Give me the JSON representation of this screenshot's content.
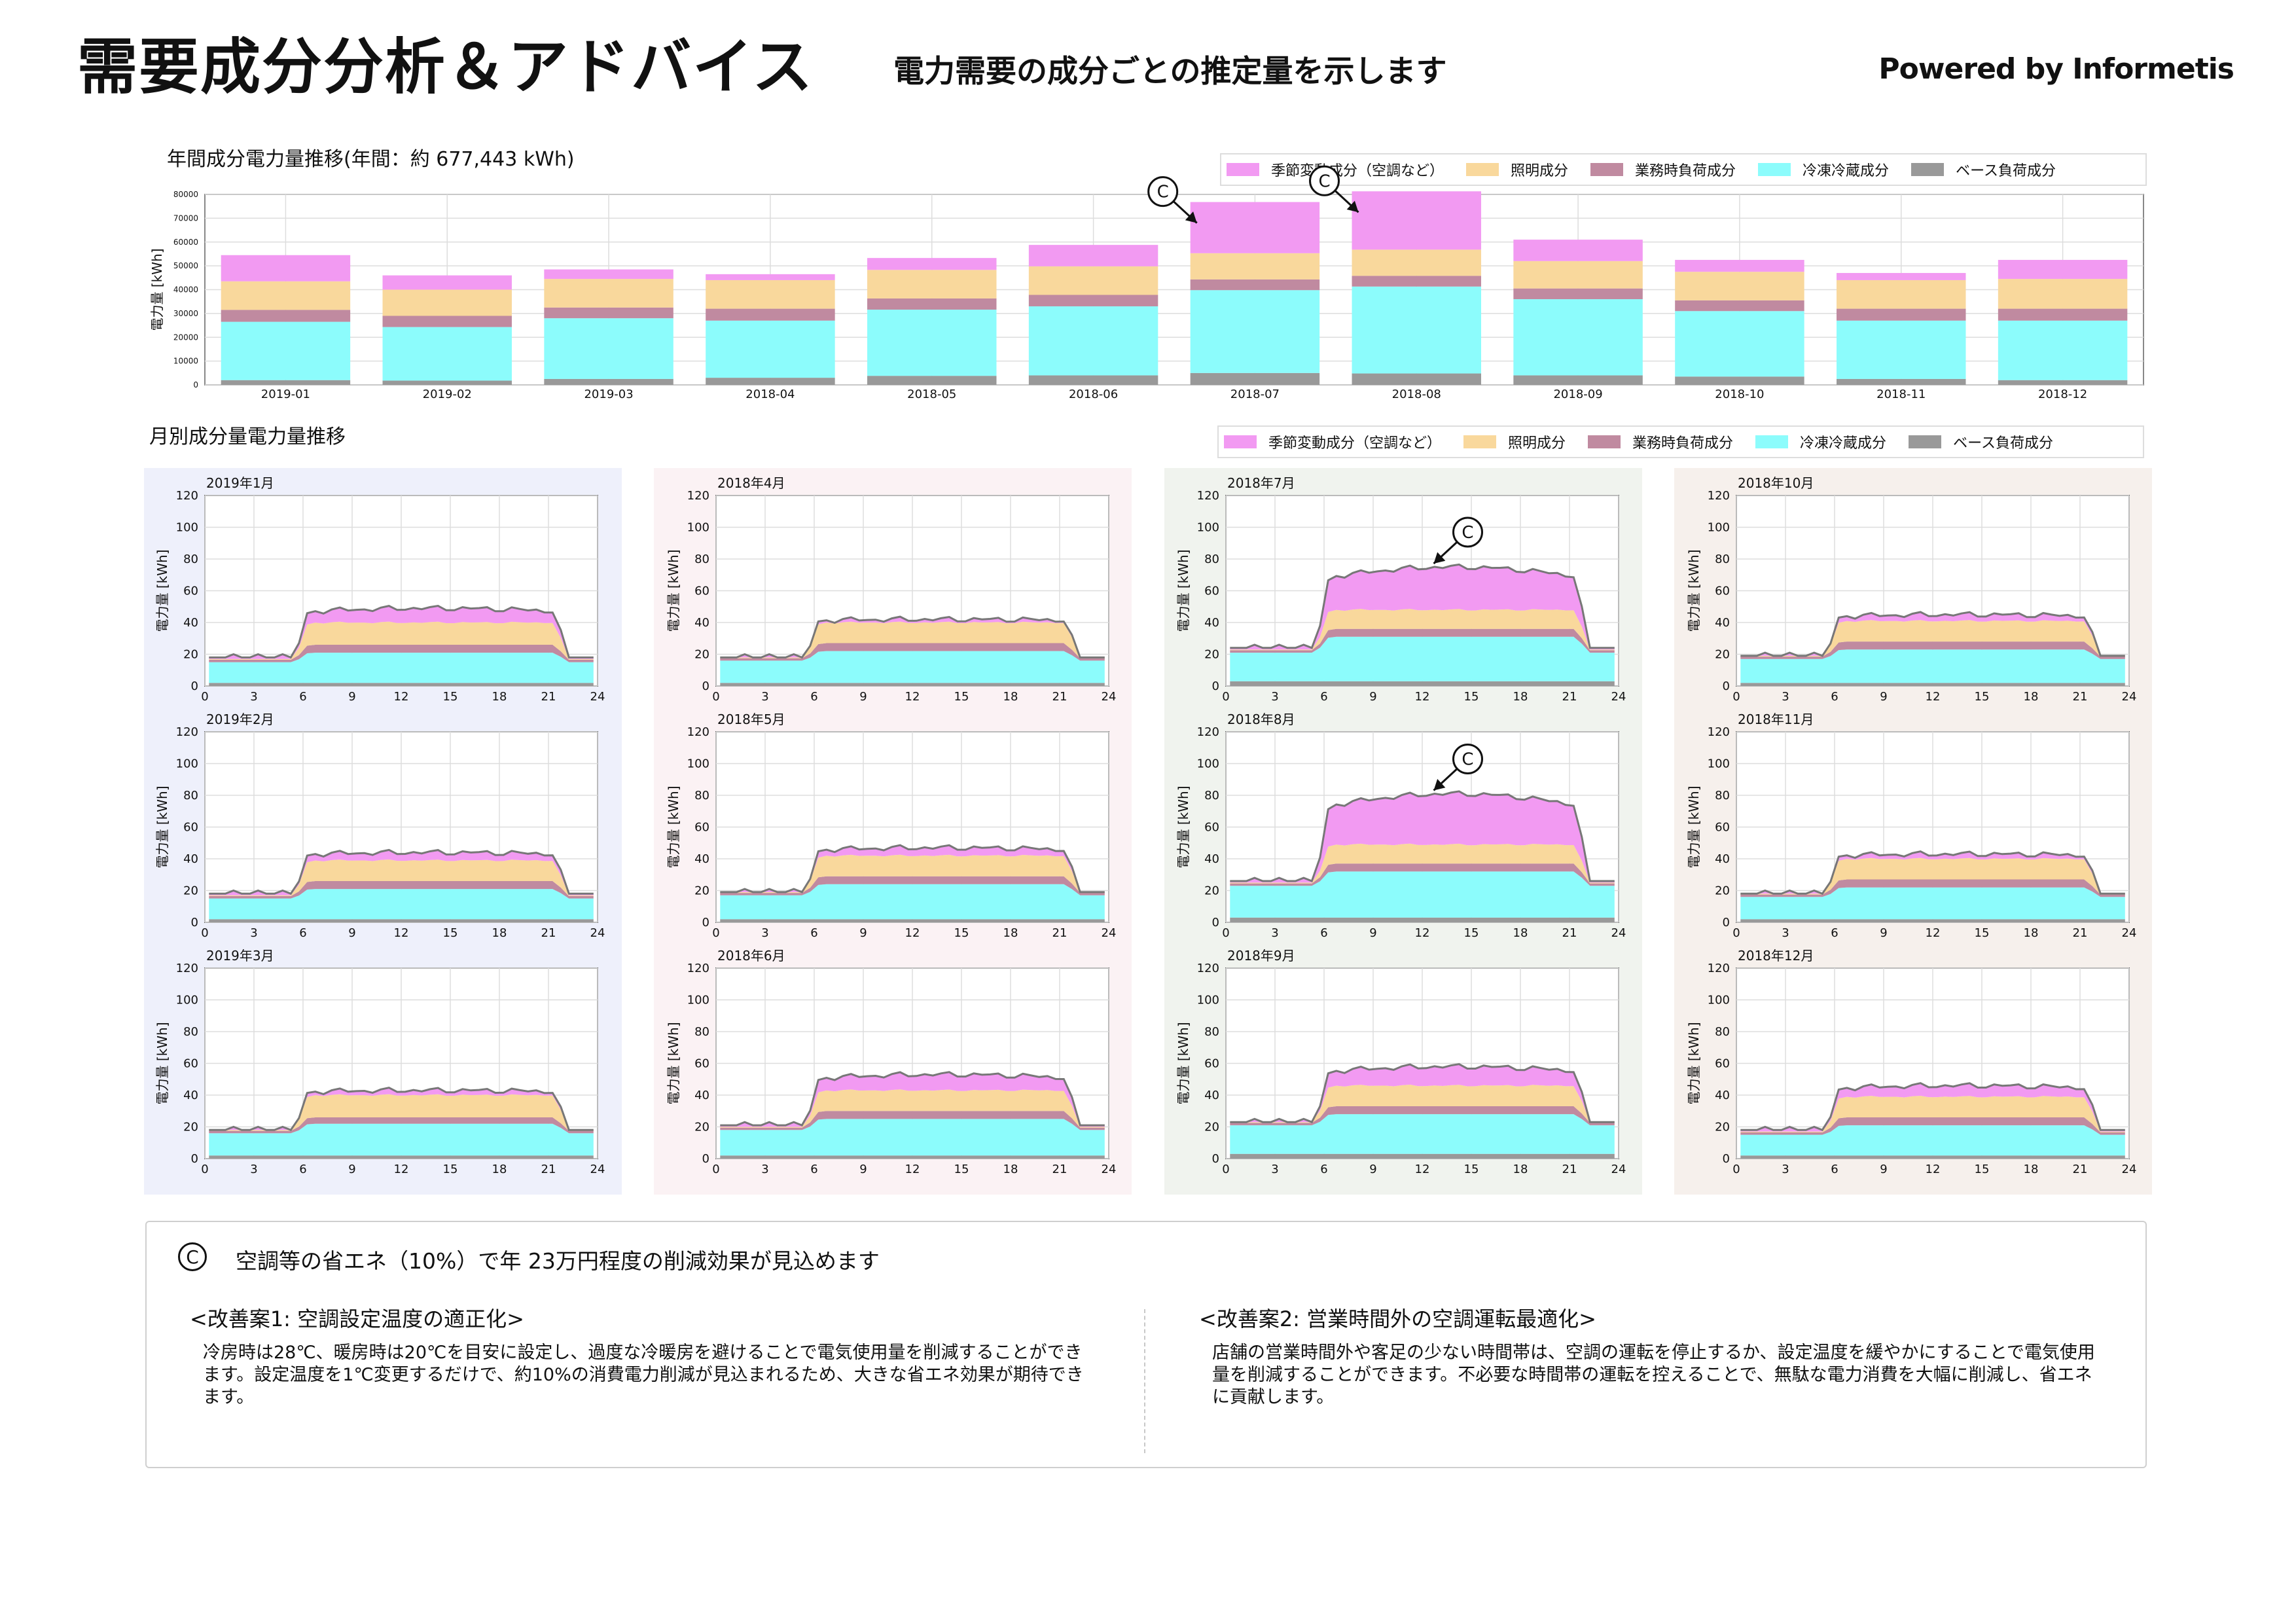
{
  "header": {
    "title": "需要成分分析＆アドバイス",
    "subtitle": "電力需要の成分ごとの推定量を示します",
    "powered_by": "Powered by Informetis"
  },
  "colors": {
    "seasonal": "#f29af2",
    "lighting": "#f9d89c",
    "business": "#c08aa0",
    "refrigeration": "#8cfcfc",
    "base": "#999999",
    "blue_bg": "#eef0fb",
    "pink_bg": "#fbf2f4",
    "green_bg": "#f0f3ee",
    "tan_bg": "#f6f0ec",
    "arrow_line": "#777777"
  },
  "legend": [
    {
      "key": "seasonal",
      "label": "季節変動成分（空調など）"
    },
    {
      "key": "lighting",
      "label": "照明成分"
    },
    {
      "key": "business",
      "label": "業務時負荷成分"
    },
    {
      "key": "refrigeration",
      "label": "冷凍冷蔵成分"
    },
    {
      "key": "base",
      "label": "ベース負荷成分"
    }
  ],
  "annual_section": {
    "label": "年間成分電力量推移(年間：約 677,443 kWh)"
  },
  "monthly_section": {
    "label": "月別成分量電力量推移"
  },
  "advice": {
    "icon": "C",
    "headline": "空調等の省エネ（10%）で年 23万円程度の削減効果が見込めます",
    "plan1_title": "<改善案1: 空調設定温度の適正化>",
    "plan1_body": "冷房時は28℃、暖房時は20℃を目安に設定し、過度な冷暖房を避けることで電気使用量を削減することができます。設定温度を1℃変更するだけで、約10%の消費電力削減が見込まれるため、大きな省エネ効果が期待できます。",
    "plan2_title": "<改善案2: 営業時間外の空調運転最適化>",
    "plan2_body": "店舗の営業時間外や客足の少ない時間帯は、空調の運転を停止するか、設定温度を緩やかにすることで電気使用量を削減することができます。不必要な時間帯の運転を控えることで、無駄な電力消費を大幅に削減し、省エネに貢献します。"
  },
  "chart_data": [
    {
      "type": "bar",
      "stacked": true,
      "ylabel": "電力量 [kWh]",
      "ylim": [
        0,
        80000
      ],
      "yticks": [
        0,
        10000,
        20000,
        30000,
        40000,
        50000,
        60000,
        70000,
        80000
      ],
      "grid": true,
      "legend_position": "top-right",
      "categories": [
        "2019-01",
        "2019-02",
        "2019-03",
        "2018-04",
        "2018-05",
        "2018-06",
        "2018-07",
        "2018-08",
        "2018-09",
        "2018-10",
        "2018-11",
        "2018-12"
      ],
      "series": [
        {
          "name": "ベース負荷成分",
          "key": "base",
          "values": [
            2000,
            1800,
            2500,
            3000,
            3800,
            4000,
            5000,
            4800,
            4000,
            3500,
            2500,
            2000
          ]
        },
        {
          "name": "冷凍冷蔵成分",
          "key": "refrigeration",
          "values": [
            24500,
            22500,
            25500,
            24000,
            27800,
            29000,
            34800,
            36500,
            32000,
            27500,
            24500,
            25000
          ]
        },
        {
          "name": "業務時負荷成分",
          "key": "business",
          "values": [
            5000,
            4700,
            4500,
            5000,
            4700,
            4800,
            4500,
            4500,
            4500,
            4500,
            5000,
            5000
          ]
        },
        {
          "name": "照明成分",
          "key": "lighting",
          "values": [
            12000,
            11000,
            12000,
            12000,
            12000,
            12000,
            11000,
            11000,
            11500,
            12000,
            12000,
            12500
          ]
        },
        {
          "name": "季節変動成分（空調など）",
          "key": "seasonal",
          "values": [
            11000,
            6000,
            4000,
            2500,
            5000,
            9000,
            21500,
            24500,
            9000,
            5000,
            3000,
            8000
          ]
        }
      ],
      "callouts": [
        "2018-07",
        "2018-08"
      ],
      "callout_label": "C"
    },
    {
      "type": "area",
      "stacked": true,
      "ylabel": "電力量 [kWh]",
      "xlim": [
        0,
        24
      ],
      "xticks": [
        0,
        3,
        6,
        9,
        12,
        15,
        18,
        21,
        24
      ],
      "ylim": [
        0,
        120
      ],
      "yticks": [
        0,
        20,
        40,
        60,
        80,
        100,
        120
      ],
      "grid": true,
      "panels": [
        {
          "title": "2019年1月",
          "bg": "blue_bg",
          "params": {
            "base": 2,
            "ref_night": 13,
            "ref_day": 19,
            "bus": 5,
            "light": 14,
            "seas": 9,
            "seas_night": 1
          }
        },
        {
          "title": "2019年2月",
          "bg": "blue_bg",
          "params": {
            "base": 2,
            "ref_night": 13,
            "ref_day": 19,
            "bus": 5,
            "light": 13,
            "seas": 5,
            "seas_night": 1
          }
        },
        {
          "title": "2019年3月",
          "bg": "blue_bg",
          "params": {
            "base": 2,
            "ref_night": 14,
            "ref_day": 20,
            "bus": 4,
            "light": 14,
            "seas": 3,
            "seas_night": 0
          }
        },
        {
          "title": "2018年4月",
          "bg": "pink_bg",
          "params": {
            "base": 2,
            "ref_night": 14,
            "ref_day": 20,
            "bus": 5,
            "light": 13,
            "seas": 2,
            "seas_night": 0
          }
        },
        {
          "title": "2018年5月",
          "bg": "pink_bg",
          "params": {
            "base": 2,
            "ref_night": 15,
            "ref_day": 22,
            "bus": 5,
            "light": 13,
            "seas": 5,
            "seas_night": 0
          }
        },
        {
          "title": "2018年6月",
          "bg": "pink_bg",
          "params": {
            "base": 2,
            "ref_night": 16,
            "ref_day": 23,
            "bus": 5,
            "light": 13,
            "seas": 10,
            "seas_night": 1
          }
        },
        {
          "title": "2018年7月",
          "bg": "green_bg",
          "params": {
            "base": 3,
            "ref_night": 18,
            "ref_day": 28,
            "bus": 5,
            "light": 12,
            "seas": 27,
            "seas_night": 1
          }
        },
        {
          "title": "2018年8月",
          "bg": "green_bg",
          "params": {
            "base": 3,
            "ref_night": 20,
            "ref_day": 29,
            "bus": 5,
            "light": 12,
            "seas": 32,
            "seas_night": 1
          }
        },
        {
          "title": "2018年9月",
          "bg": "green_bg",
          "params": {
            "base": 3,
            "ref_night": 18,
            "ref_day": 25,
            "bus": 5,
            "light": 13,
            "seas": 12,
            "seas_night": 0
          }
        },
        {
          "title": "2018年10月",
          "bg": "tan_bg",
          "params": {
            "base": 2,
            "ref_night": 15,
            "ref_day": 21,
            "bus": 5,
            "light": 13,
            "seas": 4,
            "seas_night": 0
          }
        },
        {
          "title": "2018年11月",
          "bg": "tan_bg",
          "params": {
            "base": 2,
            "ref_night": 14,
            "ref_day": 20,
            "bus": 5,
            "light": 13,
            "seas": 3,
            "seas_night": 0
          }
        },
        {
          "title": "2018年12月",
          "bg": "tan_bg",
          "params": {
            "base": 2,
            "ref_night": 13,
            "ref_day": 19,
            "bus": 5,
            "light": 13,
            "seas": 7,
            "seas_night": 1
          }
        }
      ],
      "callouts": [
        "2018年7月",
        "2018年8月"
      ],
      "callout_label": "C"
    }
  ]
}
